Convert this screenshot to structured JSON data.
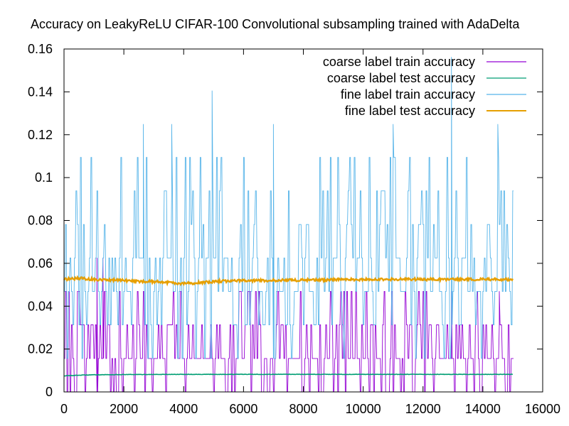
{
  "chart_data": {
    "type": "line",
    "title": "Accuracy on LeakyReLU CIFAR-100 Convolutional subsampling trained with AdaDelta",
    "xlabel": "",
    "ylabel": "",
    "xlim": [
      0,
      16000
    ],
    "ylim": [
      0,
      0.16
    ],
    "xticks": [
      0,
      2000,
      4000,
      6000,
      8000,
      10000,
      12000,
      14000,
      16000
    ],
    "xtick_labels": [
      "0",
      "2000",
      "4000",
      "6000",
      "8000",
      "10000",
      "12000",
      "14000",
      "16000"
    ],
    "yticks": [
      0,
      0.02,
      0.04,
      0.06,
      0.08,
      0.1,
      0.12,
      0.14,
      0.16
    ],
    "ytick_labels": [
      "0",
      "0.02",
      "0.04",
      "0.06",
      "0.08",
      "0.1",
      "0.12",
      "0.14",
      "0.16"
    ],
    "grid": false,
    "legend_position": "top-right",
    "series": [
      {
        "name": "coarse label train accuracy",
        "color": "#9400d3",
        "style": "noisy",
        "x_range": [
          0,
          15000
        ],
        "baseline": 0.0156,
        "spread": 0.03,
        "peaks": [
          [
            1100,
            0.0625
          ],
          [
            1300,
            0.0625
          ],
          [
            14550,
            0.047
          ],
          [
            12950,
            0.047
          ]
        ]
      },
      {
        "name": "coarse label test accuracy",
        "color": "#009e73",
        "style": "smooth",
        "x": [
          0,
          500,
          1000,
          2000,
          4000,
          6000,
          8000,
          10000,
          12000,
          15000
        ],
        "y": [
          0.0075,
          0.0078,
          0.008,
          0.0081,
          0.0082,
          0.0082,
          0.0082,
          0.0082,
          0.0082,
          0.0082
        ]
      },
      {
        "name": "fine label train accuracy",
        "color": "#56b4e9",
        "style": "noisy",
        "x_range": [
          0,
          15000
        ],
        "baseline": 0.055,
        "spread": 0.05,
        "peaks": [
          [
            2650,
            0.125
          ],
          [
            3600,
            0.125
          ],
          [
            4950,
            0.1406
          ],
          [
            7000,
            0.125
          ],
          [
            11000,
            0.125
          ],
          [
            12950,
            0.1563
          ],
          [
            14500,
            0.125
          ]
        ]
      },
      {
        "name": "fine label test accuracy",
        "color": "#e69f00",
        "style": "smooth",
        "x": [
          0,
          500,
          1000,
          2000,
          2500,
          3000,
          4000,
          4500,
          5000,
          6000,
          7000,
          8000,
          10000,
          12000,
          15000
        ],
        "y": [
          0.0525,
          0.053,
          0.0525,
          0.052,
          0.0515,
          0.0515,
          0.0505,
          0.051,
          0.0515,
          0.052,
          0.052,
          0.0522,
          0.0525,
          0.0525,
          0.0525
        ]
      }
    ]
  }
}
